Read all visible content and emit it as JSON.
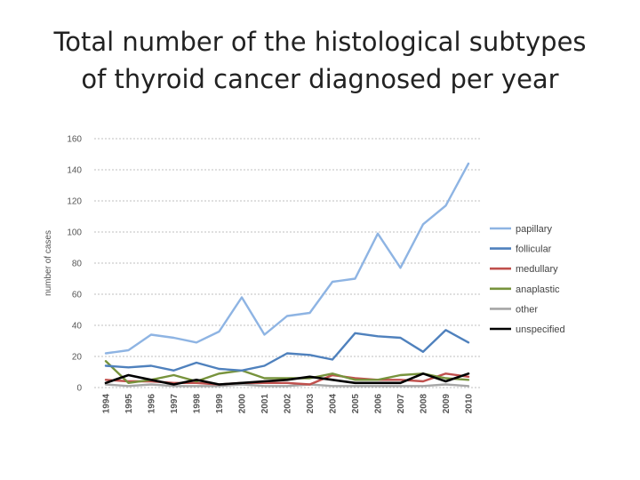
{
  "slide": {
    "title_line1": "Total number of the histological  subtypes",
    "title_line2": "of thyroid cancer diagnosed per year"
  },
  "chart_data": {
    "type": "line",
    "title": "",
    "xlabel": "",
    "ylabel": "number of cases",
    "ylim": [
      0,
      160
    ],
    "yticks": [
      "0",
      "20",
      "40",
      "60",
      "80",
      "100",
      "120",
      "140",
      "160"
    ],
    "grid": true,
    "legend_position": "right",
    "x": [
      "1994",
      "1995",
      "1996",
      "1997",
      "1998",
      "1999",
      "2000",
      "2001",
      "2002",
      "2003",
      "2004",
      "2005",
      "2006",
      "2007",
      "2008",
      "2009",
      "2010"
    ],
    "series": [
      {
        "name": "papillary",
        "color": "#8EB4E3",
        "values": [
          22,
          24,
          34,
          32,
          29,
          36,
          58,
          34,
          46,
          48,
          68,
          70,
          99,
          77,
          105,
          117,
          144
        ]
      },
      {
        "name": "follicular",
        "color": "#4F81BD",
        "values": [
          14,
          13,
          14,
          11,
          16,
          12,
          11,
          14,
          22,
          21,
          18,
          35,
          33,
          32,
          23,
          37,
          29
        ]
      },
      {
        "name": "medullary",
        "color": "#C0504D",
        "values": [
          5,
          4,
          4,
          3,
          3,
          2,
          3,
          3,
          3,
          2,
          8,
          6,
          5,
          5,
          4,
          9,
          7
        ]
      },
      {
        "name": "anaplastic",
        "color": "#77933C",
        "values": [
          17,
          3,
          5,
          8,
          4,
          9,
          11,
          6,
          6,
          6,
          9,
          5,
          5,
          8,
          9,
          6,
          5
        ]
      },
      {
        "name": "other",
        "color": "#A6A6A6",
        "values": [
          2,
          1,
          2,
          1,
          1,
          1,
          2,
          1,
          1,
          2,
          1,
          1,
          1,
          1,
          1,
          2,
          1
        ]
      },
      {
        "name": "unspecified",
        "color": "#000000",
        "values": [
          3,
          8,
          5,
          2,
          5,
          2,
          3,
          4,
          5,
          7,
          5,
          3,
          3,
          3,
          9,
          4,
          9
        ]
      }
    ]
  }
}
